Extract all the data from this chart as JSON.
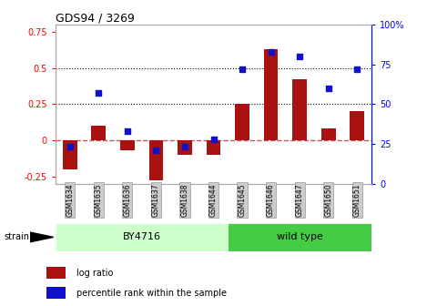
{
  "title": "GDS94 / 3269",
  "samples": [
    "GSM1634",
    "GSM1635",
    "GSM1636",
    "GSM1637",
    "GSM1638",
    "GSM1644",
    "GSM1645",
    "GSM1646",
    "GSM1647",
    "GSM1650",
    "GSM1651"
  ],
  "log_ratio": [
    -0.2,
    0.1,
    -0.07,
    -0.28,
    -0.1,
    -0.1,
    0.25,
    0.63,
    0.42,
    0.08,
    0.2
  ],
  "percentile_rank": [
    23,
    57,
    33,
    21,
    23,
    28,
    72,
    83,
    80,
    60,
    72
  ],
  "bar_color": "#AA1111",
  "dot_color": "#1111CC",
  "ylim_left": [
    -0.3,
    0.8
  ],
  "ylim_right": [
    0,
    100
  ],
  "yticks_left": [
    -0.25,
    0,
    0.25,
    0.5,
    0.75
  ],
  "yticks_right": [
    0,
    25,
    50,
    75,
    100
  ],
  "hline_y": [
    0.25,
    0.5
  ],
  "zero_line_color": "#AA1111",
  "background_color": "#ffffff",
  "strain_row_label": "strain",
  "by4716_color": "#CCFFCC",
  "wildtype_color": "#44CC44",
  "legend_items": [
    {
      "label": "log ratio",
      "color": "#AA1111"
    },
    {
      "label": "percentile rank within the sample",
      "color": "#1111CC"
    }
  ]
}
